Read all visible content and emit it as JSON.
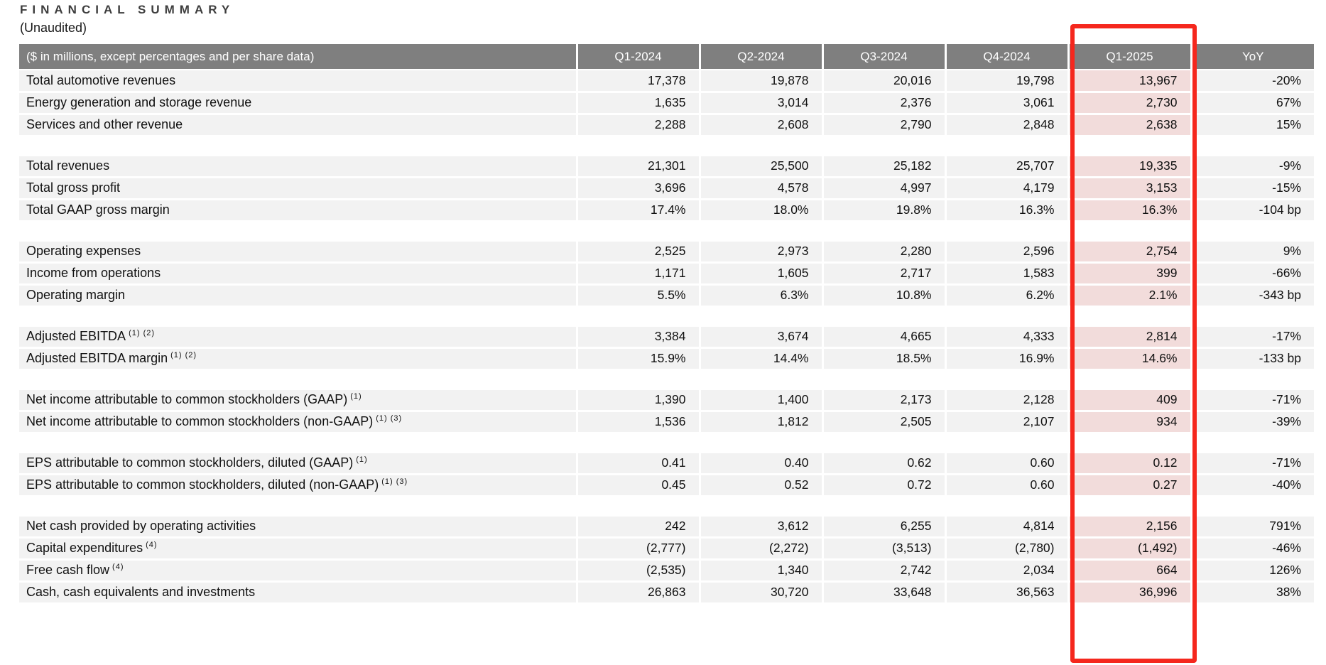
{
  "title": "FINANCIAL SUMMARY",
  "subtitle": "(Unaudited)",
  "colors": {
    "header_bg": "#7f7f7f",
    "header_text": "#ffffff",
    "row_bg": "#f2f2f2",
    "highlight_bg": "#f2dcdb",
    "box_red": "#f5271d",
    "title_color": "#3d3d3d",
    "text": "#111111"
  },
  "table": {
    "unit_label": "($ in millions, except percentages and per share data)",
    "columns": [
      "Q1-2024",
      "Q2-2024",
      "Q3-2024",
      "Q4-2024",
      "Q1-2025",
      "YoY"
    ],
    "highlight_column": "Q1-2025",
    "groups": [
      {
        "rows": [
          {
            "label": "Total automotive revenues",
            "sup": "",
            "values": [
              "17,378",
              "19,878",
              "20,016",
              "19,798",
              "13,967",
              "-20%"
            ]
          },
          {
            "label": "Energy generation and storage revenue",
            "sup": "",
            "values": [
              "1,635",
              "3,014",
              "2,376",
              "3,061",
              "2,730",
              "67%"
            ]
          },
          {
            "label": "Services and other revenue",
            "sup": "",
            "values": [
              "2,288",
              "2,608",
              "2,790",
              "2,848",
              "2,638",
              "15%"
            ]
          }
        ]
      },
      {
        "rows": [
          {
            "label": "Total revenues",
            "sup": "",
            "values": [
              "21,301",
              "25,500",
              "25,182",
              "25,707",
              "19,335",
              "-9%"
            ]
          },
          {
            "label": "Total gross profit",
            "sup": "",
            "values": [
              "3,696",
              "4,578",
              "4,997",
              "4,179",
              "3,153",
              "-15%"
            ]
          },
          {
            "label": "Total GAAP gross margin",
            "sup": "",
            "values": [
              "17.4%",
              "18.0%",
              "19.8%",
              "16.3%",
              "16.3%",
              "-104 bp"
            ]
          }
        ]
      },
      {
        "rows": [
          {
            "label": "Operating expenses",
            "sup": "",
            "values": [
              "2,525",
              "2,973",
              "2,280",
              "2,596",
              "2,754",
              "9%"
            ]
          },
          {
            "label": "Income from operations",
            "sup": "",
            "values": [
              "1,171",
              "1,605",
              "2,717",
              "1,583",
              "399",
              "-66%"
            ]
          },
          {
            "label": "Operating margin",
            "sup": "",
            "values": [
              "5.5%",
              "6.3%",
              "10.8%",
              "6.2%",
              "2.1%",
              "-343 bp"
            ]
          }
        ]
      },
      {
        "rows": [
          {
            "label": "Adjusted EBITDA",
            "sup": "(1) (2)",
            "values": [
              "3,384",
              "3,674",
              "4,665",
              "4,333",
              "2,814",
              "-17%"
            ]
          },
          {
            "label": "Adjusted EBITDA margin",
            "sup": "(1) (2)",
            "values": [
              "15.9%",
              "14.4%",
              "18.5%",
              "16.9%",
              "14.6%",
              "-133 bp"
            ]
          }
        ]
      },
      {
        "rows": [
          {
            "label": "Net income attributable to common stockholders (GAAP)",
            "sup": "(1)",
            "values": [
              "1,390",
              "1,400",
              "2,173",
              "2,128",
              "409",
              "-71%"
            ]
          },
          {
            "label": "Net income attributable to common stockholders (non-GAAP)",
            "sup": "(1) (3)",
            "values": [
              "1,536",
              "1,812",
              "2,505",
              "2,107",
              "934",
              "-39%"
            ]
          }
        ]
      },
      {
        "rows": [
          {
            "label": "EPS attributable to common stockholders, diluted (GAAP)",
            "sup": "(1)",
            "values": [
              "0.41",
              "0.40",
              "0.62",
              "0.60",
              "0.12",
              "-71%"
            ]
          },
          {
            "label": "EPS attributable to common stockholders, diluted (non-GAAP)",
            "sup": "(1) (3)",
            "values": [
              "0.45",
              "0.52",
              "0.72",
              "0.60",
              "0.27",
              "-40%"
            ]
          }
        ]
      },
      {
        "rows": [
          {
            "label": "Net cash provided by operating activities",
            "sup": "",
            "values": [
              "242",
              "3,612",
              "6,255",
              "4,814",
              "2,156",
              "791%"
            ]
          },
          {
            "label": "Capital expenditures",
            "sup": "(4)",
            "values": [
              "(2,777)",
              "(2,272)",
              "(3,513)",
              "(2,780)",
              "(1,492)",
              "-46%"
            ]
          },
          {
            "label": "Free cash flow",
            "sup": "(4)",
            "values": [
              "(2,535)",
              "1,340",
              "2,742",
              "2,034",
              "664",
              "126%"
            ]
          },
          {
            "label": "Cash, cash equivalents and investments",
            "sup": "",
            "values": [
              "26,863",
              "30,720",
              "33,648",
              "36,563",
              "36,996",
              "38%"
            ]
          }
        ]
      }
    ]
  }
}
